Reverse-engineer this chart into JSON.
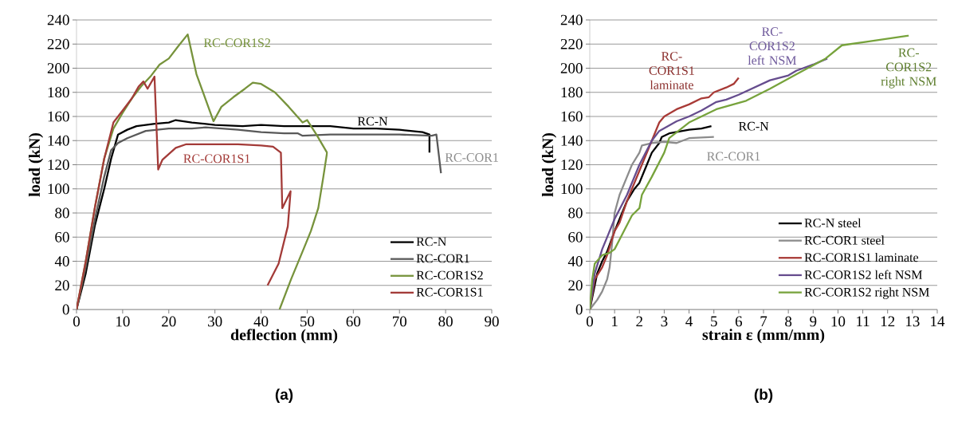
{
  "chart_data": [
    {
      "type": "line",
      "xlabel": "deflection (mm)",
      "ylabel": "load (kN)",
      "xlim": [
        0,
        90
      ],
      "ylim": [
        0,
        240
      ],
      "xticks": [
        0,
        10,
        20,
        30,
        40,
        50,
        60,
        70,
        80,
        90
      ],
      "yticks": [
        0,
        20,
        40,
        60,
        80,
        100,
        120,
        140,
        160,
        180,
        200,
        220,
        240
      ],
      "grid": "y",
      "legend": "bottom right",
      "series": [
        {
          "name": "RC-N",
          "color": "#000000",
          "x": [
            0,
            2,
            4,
            6,
            7.5,
            9,
            11,
            13,
            17,
            20,
            21.5,
            25,
            30,
            36,
            40,
            45,
            50,
            55,
            60,
            65,
            70,
            75,
            76.5,
            76.5
          ],
          "values": [
            0,
            30,
            70,
            100,
            125,
            145,
            149,
            152,
            154,
            155,
            157,
            155,
            153,
            152,
            153,
            152,
            152,
            152,
            150,
            150,
            149,
            147,
            145,
            130
          ]
        },
        {
          "name": "RC-COR1",
          "color": "#595959",
          "x": [
            0,
            2,
            4,
            6,
            7.5,
            9,
            11,
            13,
            15,
            20,
            25,
            28,
            35,
            40,
            45,
            48,
            49,
            55,
            60,
            70,
            77,
            78,
            79
          ],
          "values": [
            0,
            35,
            75,
            110,
            132,
            138,
            142,
            145,
            148,
            150,
            150,
            151,
            149,
            147,
            146,
            146,
            144,
            145,
            145,
            145,
            144,
            145,
            113
          ]
        },
        {
          "name": "RC-COR1S2",
          "color": "#77933c",
          "x": [
            0,
            2,
            4,
            6,
            8,
            10,
            12,
            14,
            16,
            18,
            20,
            22,
            24.1,
            26,
            29.7,
            31.4,
            34,
            36.5,
            38.2,
            40,
            43,
            46,
            49,
            50,
            52,
            54.3,
            53.5,
            52.4,
            50.8,
            49.2,
            46.5,
            44
          ],
          "values": [
            0,
            40,
            85,
            125,
            150,
            163,
            175,
            185,
            193,
            203,
            208,
            218,
            228,
            195,
            156,
            168,
            176,
            183,
            188,
            187,
            180,
            168,
            155,
            157,
            145,
            130,
            110,
            84,
            65,
            50,
            25,
            0
          ]
        },
        {
          "name": "RC-COR1S1",
          "color": "#a33b38",
          "x": [
            0,
            2,
            4,
            6,
            8,
            10,
            12,
            13.5,
            14.5,
            15.4,
            16.9,
            17.7,
            18.6,
            21.5,
            23.8,
            30,
            35,
            40,
            42.6,
            44.3,
            44.6,
            46.4,
            45.8,
            43.8,
            41.4
          ],
          "values": [
            0,
            40,
            85,
            125,
            155,
            165,
            175,
            185,
            189,
            183,
            193,
            116,
            124,
            134,
            137,
            137,
            137,
            136,
            135,
            130,
            84,
            98,
            69,
            38,
            20
          ]
        }
      ],
      "annotations": [
        "RC-COR1S2",
        "RC-N",
        "RC-COR1",
        "RC-COR1S1",
        "(a)"
      ]
    },
    {
      "type": "line",
      "xlabel": "strain ε (mm/mm)",
      "ylabel": "load (kN)",
      "xlim": [
        0,
        14
      ],
      "ylim": [
        0,
        240
      ],
      "xticks": [
        0,
        1,
        2,
        3,
        4,
        5,
        6,
        7,
        8,
        9,
        10,
        11,
        12,
        13,
        14
      ],
      "yticks": [
        0,
        20,
        40,
        60,
        80,
        100,
        120,
        140,
        160,
        180,
        200,
        220,
        240
      ],
      "grid": "y",
      "legend": "bottom right",
      "series": [
        {
          "name": "RC-N steel",
          "color": "#000000",
          "x": [
            0,
            0.3,
            0.5,
            0.7,
            1,
            1.5,
            1.8,
            2,
            2.2,
            2.3,
            2.5,
            2.8,
            2.9,
            3.2,
            4,
            4.5,
            4.9
          ],
          "values": [
            0,
            30,
            40,
            48,
            65,
            90,
            100,
            105,
            115,
            120,
            130,
            138,
            143,
            146,
            149,
            150,
            152
          ]
        },
        {
          "name": "RC-COR1 steel",
          "color": "#8c8c8c",
          "x": [
            0,
            0.3,
            0.5,
            0.7,
            0.8,
            0.9,
            1,
            1.2,
            1.5,
            1.7,
            2,
            2.1,
            2.5,
            3,
            3.5,
            4,
            5
          ],
          "values": [
            0,
            8,
            15,
            25,
            35,
            55,
            80,
            95,
            110,
            120,
            130,
            136,
            138,
            139,
            138,
            142,
            143
          ]
        },
        {
          "name": "RC-COR1S1 laminate",
          "color": "#a83a36",
          "x": [
            0,
            0.2,
            0.5,
            0.7,
            1,
            1.2,
            1.5,
            2,
            2.5,
            2.8,
            3,
            3.5,
            4,
            4.5,
            4.8,
            5,
            5.5,
            5.8,
            6
          ],
          "values": [
            0,
            25,
            35,
            45,
            65,
            72,
            90,
            115,
            140,
            155,
            160,
            166,
            170,
            175,
            176,
            180,
            184,
            187,
            192
          ]
        },
        {
          "name": "RC-COR1S2 left NSM",
          "color": "#664d8e",
          "x": [
            0,
            0.2,
            0.5,
            1,
            1.5,
            2,
            2.5,
            2.8,
            3.5,
            4,
            4.5,
            5.1,
            5.5,
            6,
            7.26,
            8,
            8.33,
            9,
            9.57
          ],
          "values": [
            0,
            30,
            50,
            75,
            95,
            120,
            140,
            148,
            156,
            160,
            165,
            172,
            174,
            178,
            190,
            194,
            198,
            203,
            208
          ]
        },
        {
          "name": "RC-COR1S2 right NSM",
          "color": "#77a33c",
          "x": [
            0,
            0.1,
            0.2,
            0.5,
            0.8,
            1,
            1.3,
            1.7,
            2,
            2.1,
            2.5,
            3,
            3.2,
            4,
            5.1,
            6.3,
            7.26,
            8.33,
            9.5,
            10.16,
            11.2,
            12.85
          ],
          "values": [
            0,
            25,
            38,
            45,
            47,
            50,
            62,
            78,
            84,
            95,
            110,
            130,
            142,
            155,
            166,
            173,
            183,
            195,
            208,
            219,
            222,
            227
          ]
        }
      ],
      "annotations": [
        "RC-COR1S1 laminate",
        "RC-COR1S2 left NSM",
        "RC-N",
        "RC-COR1",
        "RC-COR1S2 right NSM",
        "(b)"
      ]
    }
  ]
}
